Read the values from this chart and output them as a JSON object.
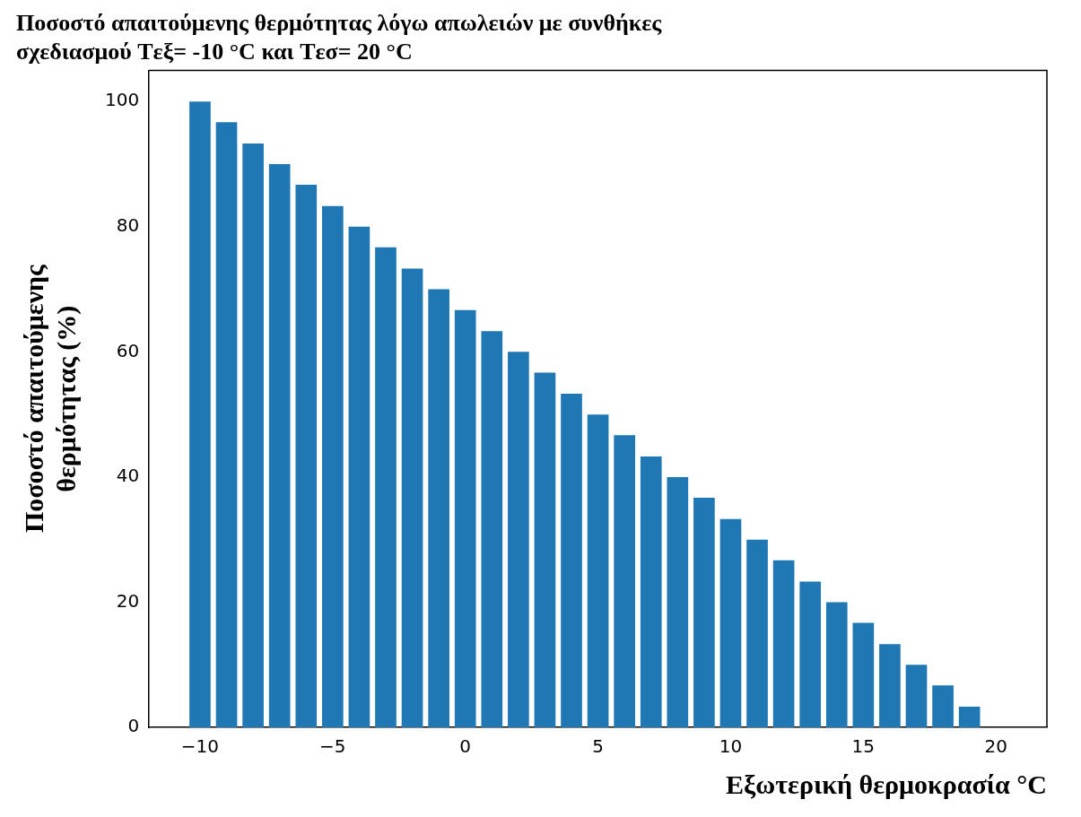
{
  "chart_data": {
    "type": "bar",
    "title": "Ποσοστό απαιτούμενης θερμότητας λόγω απωλειών με συνθήκες\nσχεδιασμού Tεξ= -10 °C και Tεσ= 20 °C",
    "xlabel": "Εξωτερική θερμοκρασία °C",
    "ylabel": "Ποσοστό απαιτούμενης\nθερμότητας (%)",
    "x": [
      -10,
      -9,
      -8,
      -7,
      -6,
      -5,
      -4,
      -3,
      -2,
      -1,
      0,
      1,
      2,
      3,
      4,
      5,
      6,
      7,
      8,
      9,
      10,
      11,
      12,
      13,
      14,
      15,
      16,
      17,
      18,
      19
    ],
    "values": [
      100,
      96.7,
      93.3,
      90,
      86.7,
      83.3,
      80,
      76.7,
      73.3,
      70,
      66.7,
      63.3,
      60,
      56.7,
      53.3,
      50,
      46.7,
      43.3,
      40,
      36.7,
      33.3,
      30,
      26.7,
      23.3,
      20,
      16.7,
      13.3,
      10,
      6.7,
      3.3
    ],
    "color": "#1f77b4",
    "xlim": [
      -11.92,
      21.92
    ],
    "xticks": [
      -10,
      -5,
      0,
      5,
      10,
      15,
      20
    ],
    "ylim": [
      0,
      105
    ],
    "yticks": [
      0,
      20,
      40,
      60,
      80,
      100
    ],
    "grid": false,
    "legend": false
  }
}
